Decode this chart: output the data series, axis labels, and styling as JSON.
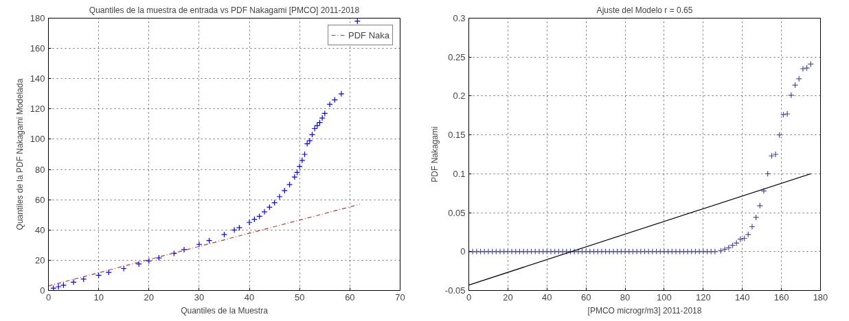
{
  "chart_data": [
    {
      "type": "scatter",
      "title": "Quantiles de la muestra de entrada vs PDF Nakagami [PMCO] 2011-2018",
      "xlabel": "Quantiles de la Muestra",
      "ylabel": "Quantiles de la PDF Nakagami Modelada",
      "xlim": [
        0,
        70
      ],
      "ylim": [
        0,
        180
      ],
      "xticks": [
        0,
        10,
        20,
        30,
        40,
        50,
        60,
        70
      ],
      "yticks": [
        0,
        20,
        40,
        60,
        80,
        100,
        120,
        140,
        160,
        180
      ],
      "grid": true,
      "legend": "top right",
      "marker": "cross",
      "series": [
        {
          "color": "#0000ff",
          "x": [
            0,
            1,
            2,
            3,
            5,
            7,
            10,
            12,
            15,
            18,
            20,
            22,
            25,
            27,
            30,
            32,
            35,
            37,
            38,
            40,
            41,
            42,
            43,
            44,
            45,
            46,
            47,
            48,
            49,
            49.5,
            50,
            50.5,
            51,
            51.5,
            52,
            52.5,
            53,
            53.5,
            54,
            54.5,
            55,
            56,
            57,
            58.3,
            61.5
          ],
          "values": [
            0,
            1.5,
            2.5,
            3.5,
            5.5,
            7.5,
            10,
            12,
            14.5,
            17.5,
            19.5,
            21.5,
            24.5,
            27,
            30.5,
            33,
            37,
            40,
            41.5,
            45,
            47,
            49,
            52,
            55,
            58,
            62,
            66,
            70,
            75,
            78,
            82,
            86,
            90,
            97,
            99,
            103,
            107,
            109,
            111,
            114,
            117,
            123,
            126,
            130,
            178
          ]
        },
        {
          "type": "line",
          "name": "PDF Naka",
          "color": "#b03a3a",
          "line_style": "dashed",
          "marker": "none",
          "x": [
            0,
            62
          ],
          "values": [
            3,
            57
          ]
        }
      ]
    },
    {
      "type": "scatter",
      "title": "Ajuste del Modelo r = 0.65",
      "xlabel": "[PMCO microgr/m3] 2011-2018",
      "ylabel": "PDF Nakagami",
      "xlim": [
        0,
        180
      ],
      "ylim": [
        -0.05,
        0.3
      ],
      "xticks": [
        0,
        20,
        40,
        60,
        80,
        100,
        120,
        140,
        160,
        180
      ],
      "yticks": [
        -0.05,
        0,
        0.05,
        0.1,
        0.15,
        0.2,
        0.25,
        0.3
      ],
      "grid": true,
      "marker": "cross",
      "series": [
        {
          "color": "#4a4a9a",
          "x": [
            0,
            2,
            4,
            6,
            8,
            10,
            12,
            14,
            16,
            18,
            20,
            22,
            24,
            26,
            28,
            30,
            32,
            34,
            36,
            38,
            40,
            42,
            44,
            46,
            48,
            50,
            52,
            54,
            56,
            58,
            60,
            62,
            64,
            66,
            68,
            70,
            72,
            74,
            76,
            78,
            80,
            82,
            84,
            86,
            88,
            90,
            92,
            94,
            96,
            98,
            100,
            102,
            104,
            106,
            108,
            110,
            112,
            114,
            116,
            118,
            120,
            122,
            124,
            126,
            129,
            131,
            133,
            135,
            137,
            139,
            141,
            143,
            145,
            147,
            149,
            151,
            153,
            155,
            157,
            159,
            161,
            163,
            165,
            167,
            169,
            171,
            173,
            175
          ],
          "values": [
            0,
            0,
            0,
            0,
            0,
            0,
            0,
            0,
            0,
            0,
            0,
            0,
            0,
            0,
            0,
            0,
            0,
            0,
            0,
            0,
            0,
            0,
            0,
            0,
            0,
            0,
            0,
            0,
            0,
            0,
            0,
            0,
            0,
            0,
            0,
            0,
            0,
            0,
            0,
            0,
            0,
            0,
            0,
            0,
            0,
            0,
            0,
            0,
            0,
            0,
            0,
            0,
            0,
            0,
            0,
            0,
            0,
            0,
            0,
            0,
            0,
            0,
            0,
            0,
            0.001,
            0.003,
            0.005,
            0.008,
            0.011,
            0.016,
            0.017,
            0.022,
            0.032,
            0.044,
            0.059,
            0.078,
            0.1,
            0.123,
            0.125,
            0.15,
            0.176,
            0.177,
            0.201,
            0.214,
            0.222,
            0.235,
            0.236,
            0.241
          ]
        },
        {
          "type": "line",
          "color": "#000000",
          "line_style": "solid",
          "marker": "none",
          "x": [
            0,
            175
          ],
          "values": [
            -0.043,
            0.1
          ]
        }
      ]
    }
  ]
}
